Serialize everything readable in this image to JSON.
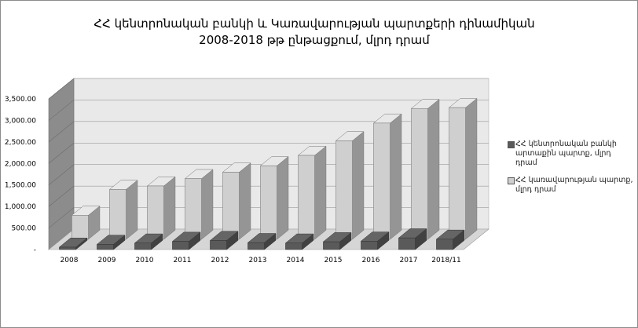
{
  "chart_data": {
    "type": "bar",
    "title_lines": [
      "ՀՀ կենտրոնական բանկի և Կառավարության պարտքերի դինամիկան",
      "2008-2018 թթ ընթացքում, մլրդ դրամ"
    ],
    "categories": [
      "2008",
      "2009",
      "2010",
      "2011",
      "2012",
      "2013",
      "2014",
      "2015",
      "2016",
      "2017",
      "2018/11"
    ],
    "series": [
      {
        "name": "ՀՀ կենտրոնական բանկի արտաքին պարտք, մլրդ դրամ",
        "color": "#5a5a5a",
        "values": [
          0,
          120,
          150,
          190,
          210,
          160,
          150,
          180,
          195,
          270,
          240
        ]
      },
      {
        "name": "ՀՀ կառավարության պարտք, մլրդ դրամ",
        "color": "#cfcfcf",
        "values": [
          560,
          1160,
          1240,
          1410,
          1560,
          1710,
          1950,
          2290,
          2700,
          3040,
          3060
        ]
      }
    ],
    "y_ticks": [
      "-",
      "500.00",
      "1,000.00",
      "1,500.00",
      "2,000.00",
      "2,500.00",
      "3,000.00",
      "3,500.00"
    ],
    "ylim": [
      0,
      3500
    ],
    "grid": true,
    "legend_position": "right",
    "style": "3d-clustered-column"
  }
}
